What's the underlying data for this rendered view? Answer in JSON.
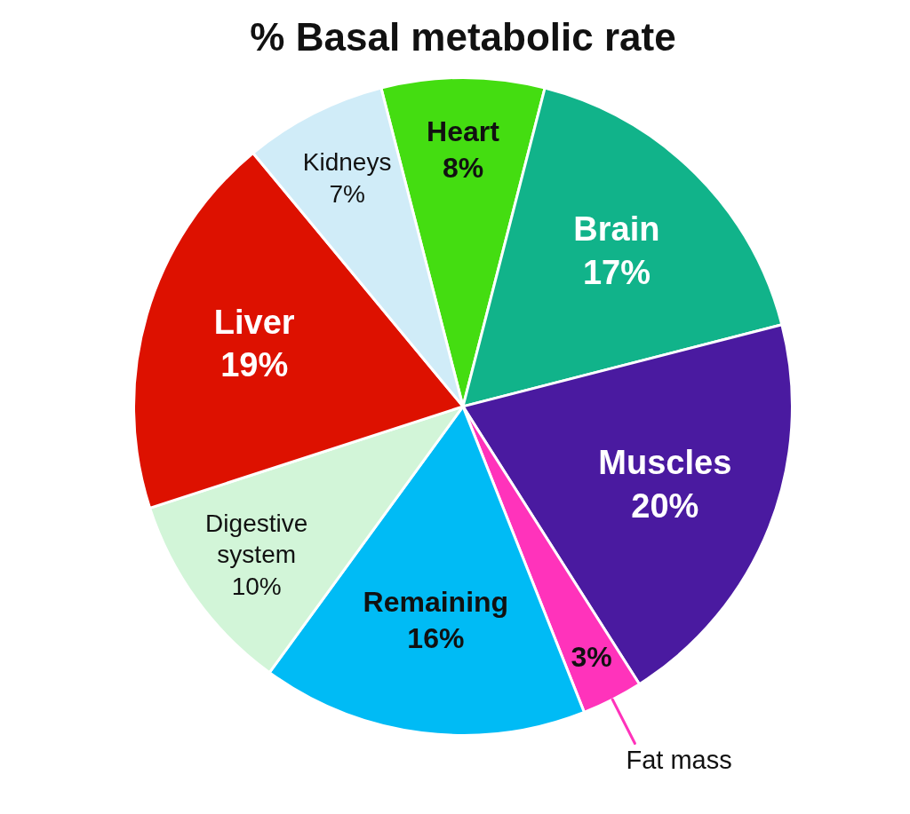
{
  "chart_data": {
    "type": "pie",
    "title": "% Basal metabolic rate",
    "categories": [
      "Heart",
      "Brain",
      "Muscles",
      "Fat mass",
      "Remaining",
      "Digestive system",
      "Liver",
      "Kidneys"
    ],
    "values": [
      8,
      17,
      20,
      3,
      16,
      10,
      19,
      7
    ],
    "colors": [
      "#44dd11",
      "#11b38a",
      "#4a1aa0",
      "#ff33bb",
      "#00bbf5",
      "#d2f5d8",
      "#dd1100",
      "#d0ecf8"
    ],
    "value_labels": [
      "8%",
      "17%",
      "20%",
      "3%",
      "16%",
      "10%",
      "19%",
      "7%"
    ]
  }
}
